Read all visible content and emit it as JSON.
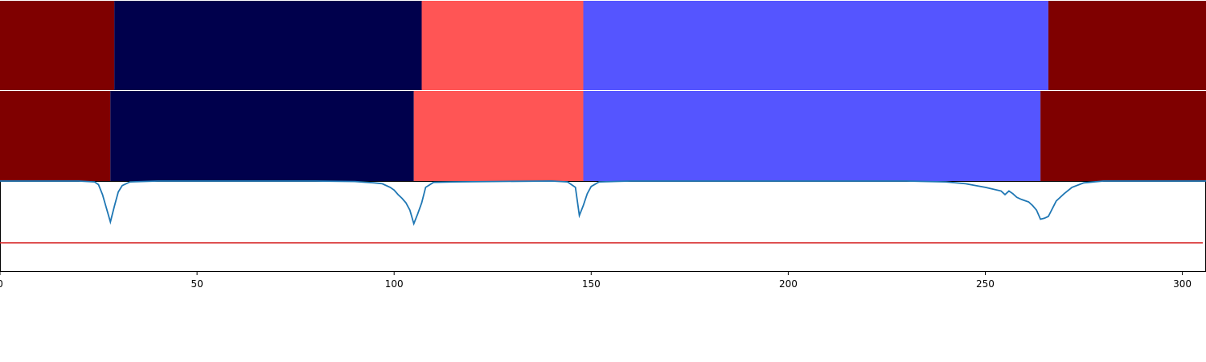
{
  "chart_data": {
    "type": "area",
    "xlim": [
      0,
      306
    ],
    "ylim": [
      0,
      1
    ],
    "x_ticks": [
      {
        "value": 0,
        "label": "0"
      },
      {
        "value": 50,
        "label": "50"
      },
      {
        "value": 100,
        "label": "100"
      },
      {
        "value": 150,
        "label": "150"
      },
      {
        "value": 200,
        "label": "200"
      },
      {
        "value": 250,
        "label": "250"
      },
      {
        "value": 300,
        "label": "300"
      }
    ],
    "segment_rows": [
      {
        "segments": [
          {
            "start": 0,
            "end": 29,
            "color": "#7f0000"
          },
          {
            "start": 29,
            "end": 107,
            "color": "#00004c"
          },
          {
            "start": 107,
            "end": 148,
            "color": "#ff5555"
          },
          {
            "start": 148,
            "end": 266,
            "color": "#5555ff"
          },
          {
            "start": 266,
            "end": 306,
            "color": "#7f0000"
          }
        ]
      },
      {
        "segments": [
          {
            "start": 0,
            "end": 28,
            "color": "#7f0000"
          },
          {
            "start": 28,
            "end": 105,
            "color": "#00004c"
          },
          {
            "start": 105,
            "end": 148,
            "color": "#ff5555"
          },
          {
            "start": 148,
            "end": 264,
            "color": "#5555ff"
          },
          {
            "start": 264,
            "end": 306,
            "color": "#7f0000"
          }
        ]
      }
    ],
    "line_series": {
      "color": "#1f77b4",
      "points": [
        [
          0,
          1.0
        ],
        [
          20,
          1.0
        ],
        [
          24,
          0.99
        ],
        [
          25,
          0.96
        ],
        [
          26,
          0.85
        ],
        [
          27,
          0.7
        ],
        [
          28,
          0.55
        ],
        [
          29,
          0.72
        ],
        [
          30,
          0.88
        ],
        [
          31,
          0.95
        ],
        [
          33,
          0.99
        ],
        [
          40,
          1.0
        ],
        [
          60,
          1.0
        ],
        [
          80,
          1.0
        ],
        [
          90,
          0.995
        ],
        [
          95,
          0.98
        ],
        [
          97,
          0.97
        ],
        [
          99,
          0.93
        ],
        [
          100,
          0.9
        ],
        [
          101,
          0.85
        ],
        [
          102,
          0.81
        ],
        [
          103,
          0.76
        ],
        [
          104,
          0.68
        ],
        [
          105,
          0.53
        ],
        [
          106,
          0.64
        ],
        [
          107,
          0.76
        ],
        [
          108,
          0.93
        ],
        [
          110,
          0.985
        ],
        [
          115,
          0.99
        ],
        [
          125,
          0.995
        ],
        [
          140,
          1.0
        ],
        [
          144,
          0.99
        ],
        [
          146,
          0.93
        ],
        [
          147,
          0.62
        ],
        [
          148,
          0.73
        ],
        [
          149,
          0.86
        ],
        [
          150,
          0.94
        ],
        [
          152,
          0.99
        ],
        [
          160,
          1.0
        ],
        [
          180,
          1.0
        ],
        [
          200,
          1.0
        ],
        [
          230,
          1.0
        ],
        [
          240,
          0.99
        ],
        [
          245,
          0.97
        ],
        [
          250,
          0.93
        ],
        [
          254,
          0.89
        ],
        [
          255,
          0.85
        ],
        [
          256,
          0.89
        ],
        [
          257,
          0.86
        ],
        [
          258,
          0.82
        ],
        [
          259,
          0.8
        ],
        [
          261,
          0.77
        ],
        [
          262,
          0.73
        ],
        [
          263,
          0.68
        ],
        [
          264,
          0.58
        ],
        [
          265,
          0.59
        ],
        [
          266,
          0.61
        ],
        [
          268,
          0.78
        ],
        [
          270,
          0.86
        ],
        [
          272,
          0.93
        ],
        [
          275,
          0.98
        ],
        [
          280,
          1.0
        ],
        [
          306,
          1.0
        ]
      ]
    },
    "threshold": {
      "value": 0.32,
      "color": "#d62728"
    }
  }
}
